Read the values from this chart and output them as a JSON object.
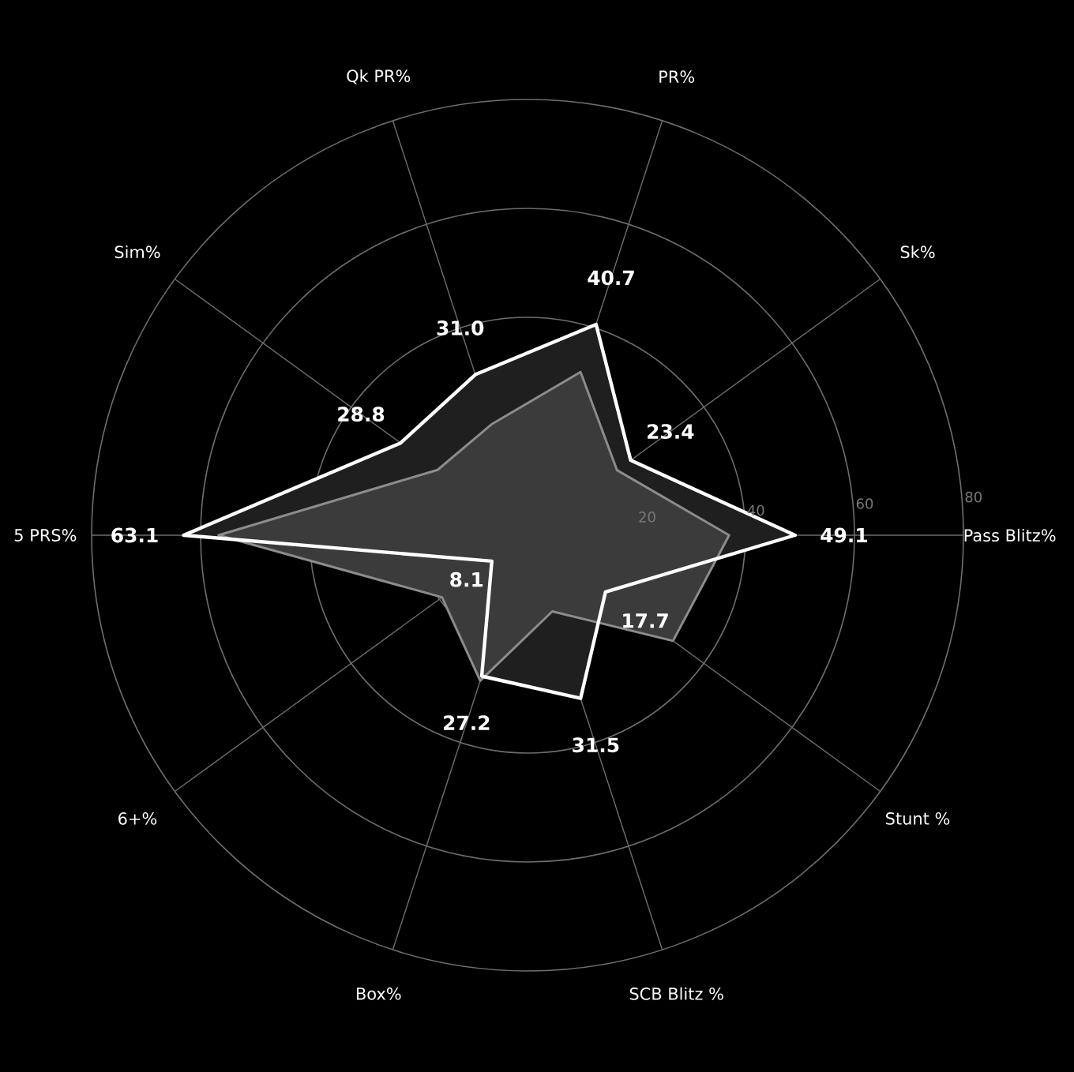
{
  "chart_data": {
    "type": "radar",
    "categories": [
      "PR%",
      "Sk%",
      "Pass Blitz%",
      "Stunt %",
      "SCB Blitz %",
      "Box%",
      "6+%",
      "5 PRS%",
      "Sim%",
      "Qk PR%"
    ],
    "series": [
      {
        "color": "#ffffff",
        "values": [
          40.7,
          23.4,
          49.1,
          17.7,
          31.5,
          27.2,
          8.1,
          63.1,
          28.8,
          31.0
        ],
        "value_labels": [
          "40.7",
          "23.4",
          "49.1",
          "17.7",
          "31.5",
          "27.2",
          "8.1",
          "63.1",
          "28.8",
          "31.0"
        ]
      },
      {
        "color": "#8c8c8c",
        "values": [
          31.5,
          20.3,
          37.0,
          33.0,
          14.7,
          28.1,
          19.4,
          56.7,
          20.4,
          21.4
        ]
      }
    ],
    "ylim": [
      0,
      80
    ],
    "yticks": [
      20,
      40,
      60,
      80
    ],
    "grid": true
  }
}
